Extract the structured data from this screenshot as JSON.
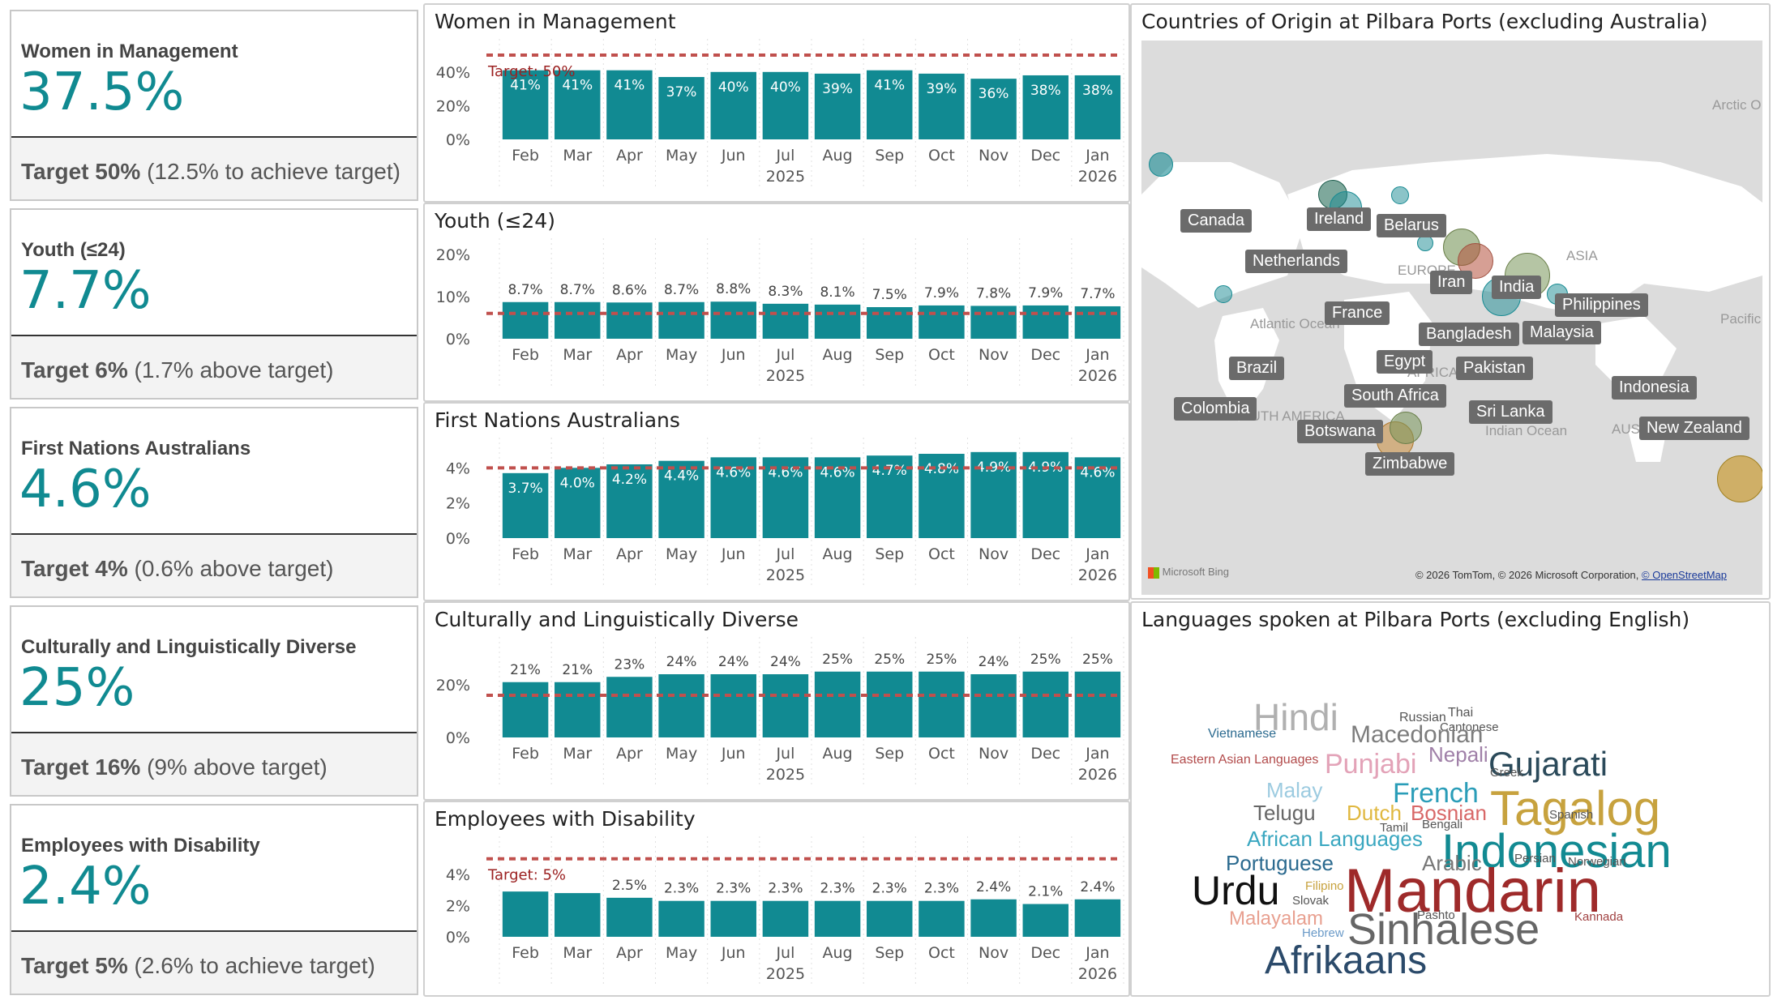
{
  "kpis": [
    {
      "title": "Women in Management",
      "value": "37.5%",
      "target_bold": "Target 50%",
      "target_note": "(12.5% to achieve target)"
    },
    {
      "title": "Youth (≤24)",
      "value": "7.7%",
      "target_bold": "Target 6%",
      "target_note": "(1.7% above target)"
    },
    {
      "title": "First Nations Australians",
      "value": "4.6%",
      "target_bold": "Target 4%",
      "target_note": "(0.6% above target)"
    },
    {
      "title": "Culturally and Linguistically Diverse",
      "value": "25%",
      "target_bold": "Target 16%",
      "target_note": "(9% above target)"
    },
    {
      "title": "Employees with Disability",
      "value": "2.4%",
      "target_bold": "Target 5%",
      "target_note": "(2.6% to achieve target)"
    }
  ],
  "chart_data": [
    {
      "type": "bar",
      "title": "Women in Management",
      "categories": [
        "Feb",
        "Mar",
        "Apr",
        "May",
        "Jun",
        "Jul",
        "Aug",
        "Sep",
        "Oct",
        "Nov",
        "Dec",
        "Jan"
      ],
      "years": [
        {
          "label": "2025",
          "under": "Jul"
        },
        {
          "label": "2026",
          "under": "Jan"
        }
      ],
      "values": [
        41,
        41,
        41,
        37,
        40,
        40,
        39,
        41,
        39,
        36,
        38,
        38
      ],
      "data_labels": [
        "41%",
        "41%",
        "41%",
        "37%",
        "40%",
        "40%",
        "39%",
        "41%",
        "39%",
        "36%",
        "38%",
        "38%"
      ],
      "labels_inside": true,
      "target": 50,
      "target_label": "Target: 50%",
      "yticks": [
        "0%",
        "20%",
        "40%"
      ],
      "ytick_values": [
        0,
        20,
        40
      ],
      "ylim": [
        0,
        50
      ],
      "color": "#118a92"
    },
    {
      "type": "bar",
      "title": "Youth (≤24)",
      "categories": [
        "Feb",
        "Mar",
        "Apr",
        "May",
        "Jun",
        "Jul",
        "Aug",
        "Sep",
        "Oct",
        "Nov",
        "Dec",
        "Jan"
      ],
      "years": [
        {
          "label": "2025",
          "under": "Jul"
        },
        {
          "label": "2026",
          "under": "Jan"
        }
      ],
      "values": [
        8.7,
        8.7,
        8.6,
        8.7,
        8.8,
        8.3,
        8.1,
        7.5,
        7.9,
        7.8,
        7.9,
        7.7
      ],
      "data_labels": [
        "8.7%",
        "8.7%",
        "8.6%",
        "8.7%",
        "8.8%",
        "8.3%",
        "8.1%",
        "7.5%",
        "7.9%",
        "7.8%",
        "7.9%",
        "7.7%"
      ],
      "labels_inside": false,
      "target": 6,
      "target_label": "",
      "yticks": [
        "0%",
        "10%",
        "20%"
      ],
      "ytick_values": [
        0,
        10,
        20
      ],
      "ylim": [
        0,
        20
      ],
      "color": "#118a92"
    },
    {
      "type": "bar",
      "title": "First Nations Australians",
      "categories": [
        "Feb",
        "Mar",
        "Apr",
        "May",
        "Jun",
        "Jul",
        "Aug",
        "Sep",
        "Oct",
        "Nov",
        "Dec",
        "Jan"
      ],
      "years": [
        {
          "label": "2025",
          "under": "Jul"
        },
        {
          "label": "2026",
          "under": "Jan"
        }
      ],
      "values": [
        3.7,
        4.0,
        4.2,
        4.4,
        4.6,
        4.6,
        4.6,
        4.7,
        4.8,
        4.9,
        4.9,
        4.6
      ],
      "data_labels": [
        "3.7%",
        "4.0%",
        "4.2%",
        "4.4%",
        "4.6%",
        "4.6%",
        "4.6%",
        "4.7%",
        "4.8%",
        "4.9%",
        "4.9%",
        "4.6%"
      ],
      "labels_inside": true,
      "target": 4,
      "target_label": "",
      "yticks": [
        "0%",
        "2%",
        "4%"
      ],
      "ytick_values": [
        0,
        2,
        4
      ],
      "ylim": [
        0,
        4.8
      ],
      "color": "#118a92"
    },
    {
      "type": "bar",
      "title": "Culturally and Linguistically Diverse",
      "categories": [
        "Feb",
        "Mar",
        "Apr",
        "May",
        "Jun",
        "Jul",
        "Aug",
        "Sep",
        "Oct",
        "Nov",
        "Dec",
        "Jan"
      ],
      "years": [
        {
          "label": "2025",
          "under": "Jul"
        },
        {
          "label": "2026",
          "under": "Jan"
        }
      ],
      "values": [
        21,
        21,
        23,
        24,
        24,
        24,
        25,
        25,
        25,
        24,
        25,
        25
      ],
      "data_labels": [
        "21%",
        "21%",
        "23%",
        "24%",
        "24%",
        "24%",
        "25%",
        "25%",
        "25%",
        "24%",
        "25%",
        "25%"
      ],
      "labels_inside": false,
      "target": 16,
      "target_label": "",
      "yticks": [
        "0%",
        "20%"
      ],
      "ytick_values": [
        0,
        20
      ],
      "ylim": [
        0,
        32
      ],
      "color": "#118a92"
    },
    {
      "type": "bar",
      "title": "Employees with Disability",
      "categories": [
        "Feb",
        "Mar",
        "Apr",
        "May",
        "Jun",
        "Jul",
        "Aug",
        "Sep",
        "Oct",
        "Nov",
        "Dec",
        "Jan"
      ],
      "years": [
        {
          "label": "2025",
          "under": "Jul"
        },
        {
          "label": "2026",
          "under": "Jan"
        }
      ],
      "values": [
        2.9,
        2.8,
        2.5,
        2.3,
        2.3,
        2.3,
        2.3,
        2.3,
        2.3,
        2.4,
        2.1,
        2.4
      ],
      "data_labels": [
        "",
        "",
        "2.5%",
        "2.3%",
        "2.3%",
        "2.3%",
        "2.3%",
        "2.3%",
        "2.3%",
        "2.4%",
        "2.1%",
        "2.4%"
      ],
      "labels_inside": false,
      "target": 5,
      "target_label": "Target: 5%",
      "yticks": [
        "0%",
        "2%",
        "4%"
      ],
      "ytick_values": [
        0,
        2,
        4
      ],
      "ylim": [
        0,
        5.4
      ],
      "color": "#118a92"
    }
  ],
  "map": {
    "title": "Countries of Origin at Pilbara Ports (excluding Australia)",
    "countries": [
      "Canada",
      "Ireland",
      "Belarus",
      "Netherlands",
      "Iran",
      "India",
      "France",
      "Philippines",
      "Bangladesh",
      "Malaysia",
      "Brazil",
      "Egypt",
      "Pakistan",
      "Indonesia",
      "South Africa",
      "Colombia",
      "Sri Lanka",
      "Botswana",
      "New Zealand",
      "Zimbabwe"
    ],
    "geo_labels": [
      "Arctic O",
      "ASIA",
      "EUROPE",
      "Pacific",
      "Atlantic Ocean",
      "AFRICA",
      "SOUTH AMERICA",
      "Indian Ocean",
      "AUSTR"
    ],
    "provider": "Microsoft Bing",
    "copyright": "© 2026 TomTom, © 2026 Microsoft Corporation,",
    "osm_link": "© OpenStreetMap"
  },
  "wordcloud": {
    "title": "Languages spoken at Pilbara Ports (excluding English)",
    "words": [
      {
        "text": "Hindi",
        "color": "#b0b0b0"
      },
      {
        "text": "Russian",
        "color": "#555555"
      },
      {
        "text": "Thai",
        "color": "#555555"
      },
      {
        "text": "Cantonese",
        "color": "#555555"
      },
      {
        "text": "Vietnamese",
        "color": "#2b6a8f"
      },
      {
        "text": "Macedonian",
        "color": "#7d7d7d"
      },
      {
        "text": "Gujarati",
        "color": "#2b4a5a"
      },
      {
        "text": "Eastern Asian Languages",
        "color": "#b24b4b"
      },
      {
        "text": "Punjabi",
        "color": "#e3a3b8"
      },
      {
        "text": "Nepali",
        "color": "#a080a8"
      },
      {
        "text": "Greek",
        "color": "#555555"
      },
      {
        "text": "Malay",
        "color": "#9ccbe0"
      },
      {
        "text": "French",
        "color": "#2a9db8"
      },
      {
        "text": "Tagalog",
        "color": "#c7a23e"
      },
      {
        "text": "Telugu",
        "color": "#666666"
      },
      {
        "text": "Dutch",
        "color": "#e0b840"
      },
      {
        "text": "Bosnian",
        "color": "#d86868"
      },
      {
        "text": "Spanish",
        "color": "#555555"
      },
      {
        "text": "Tamil",
        "color": "#555555"
      },
      {
        "text": "Bengali",
        "color": "#555555"
      },
      {
        "text": "African Languages",
        "color": "#3aa7c0"
      },
      {
        "text": "Indonesian",
        "color": "#128a92"
      },
      {
        "text": "Portuguese",
        "color": "#2b6a8f"
      },
      {
        "text": "Arabic",
        "color": "#777777"
      },
      {
        "text": "Persian",
        "color": "#555555"
      },
      {
        "text": "Norwegian",
        "color": "#555555"
      },
      {
        "text": "Urdu",
        "color": "#111111"
      },
      {
        "text": "Filipino",
        "color": "#c7a23e"
      },
      {
        "text": "Slovak",
        "color": "#555555"
      },
      {
        "text": "Mandarin",
        "color": "#9e2a2a"
      },
      {
        "text": "Malayalam",
        "color": "#e8a090"
      },
      {
        "text": "Pashto",
        "color": "#555555"
      },
      {
        "text": "Kannada",
        "color": "#a04040"
      },
      {
        "text": "Hebrew",
        "color": "#6a9ac8"
      },
      {
        "text": "Sinhalese",
        "color": "#666666"
      },
      {
        "text": "Afrikaans",
        "color": "#2b4a6a"
      }
    ]
  }
}
